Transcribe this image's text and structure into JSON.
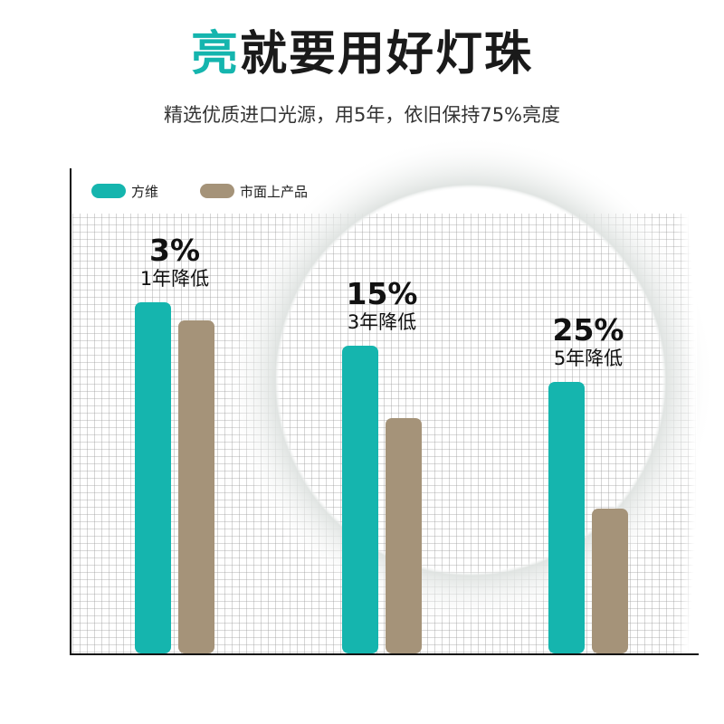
{
  "header": {
    "title_accent": "亮",
    "title_rest": "就要用好灯珠",
    "subtitle": "精选优质进口光源，用5年，依旧保持75%亮度"
  },
  "colors": {
    "accent": "#15b5ae",
    "brand_series": "#15b5ae",
    "market_series": "#a59379"
  },
  "chart_data": {
    "type": "bar",
    "categories": [
      "1年降低",
      "3年降低",
      "5年降低"
    ],
    "annotations": [
      "3%",
      "15%",
      "25%"
    ],
    "series": [
      {
        "name": "方维",
        "values": [
          97,
          85,
          75
        ]
      },
      {
        "name": "市面上产品",
        "values": [
          92,
          65,
          40
        ]
      }
    ],
    "xlabel": "",
    "ylabel": "",
    "ylim": [
      0,
      100
    ],
    "grid": true,
    "legend": "top-left"
  }
}
